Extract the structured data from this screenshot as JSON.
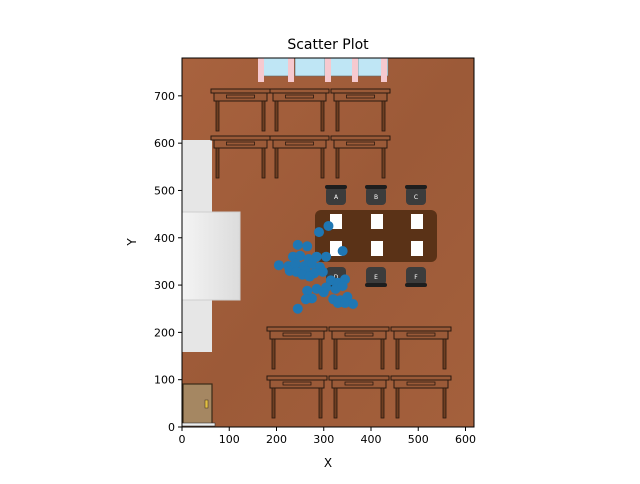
{
  "chart_data": {
    "type": "scatter",
    "title": "Scatter Plot",
    "xlabel": "X",
    "ylabel": "Y",
    "xlim": [
      0,
      618
    ],
    "ylim": [
      0,
      780
    ],
    "xticks": [
      0,
      100,
      200,
      300,
      400,
      500,
      600
    ],
    "yticks": [
      0,
      100,
      200,
      300,
      400,
      500,
      600,
      700
    ],
    "grid": false,
    "marker_color": "#1f77b4",
    "background": "classroom floor plan image",
    "seat_labels": [
      "A",
      "B",
      "C",
      "D",
      "E",
      "F"
    ],
    "series": [
      {
        "points": [
          [
            310,
            425
          ],
          [
            290,
            412
          ],
          [
            340,
            372
          ],
          [
            245,
            385
          ],
          [
            265,
            382
          ],
          [
            235,
            360
          ],
          [
            250,
            362
          ],
          [
            268,
            355
          ],
          [
            285,
            360
          ],
          [
            305,
            360
          ],
          [
            205,
            342
          ],
          [
            225,
            340
          ],
          [
            240,
            345
          ],
          [
            258,
            340
          ],
          [
            275,
            345
          ],
          [
            292,
            338
          ],
          [
            228,
            330
          ],
          [
            242,
            328
          ],
          [
            262,
            330
          ],
          [
            280,
            325
          ],
          [
            298,
            328
          ],
          [
            255,
            322
          ],
          [
            270,
            318
          ],
          [
            315,
            310
          ],
          [
            330,
            305
          ],
          [
            345,
            312
          ],
          [
            305,
            295
          ],
          [
            325,
            292
          ],
          [
            340,
            298
          ],
          [
            285,
            292
          ],
          [
            300,
            285
          ],
          [
            265,
            288
          ],
          [
            275,
            272
          ],
          [
            262,
            270
          ],
          [
            320,
            270
          ],
          [
            335,
            268
          ],
          [
            350,
            275
          ],
          [
            330,
            262
          ],
          [
            345,
            262
          ],
          [
            362,
            260
          ],
          [
            245,
            250
          ]
        ]
      }
    ]
  }
}
